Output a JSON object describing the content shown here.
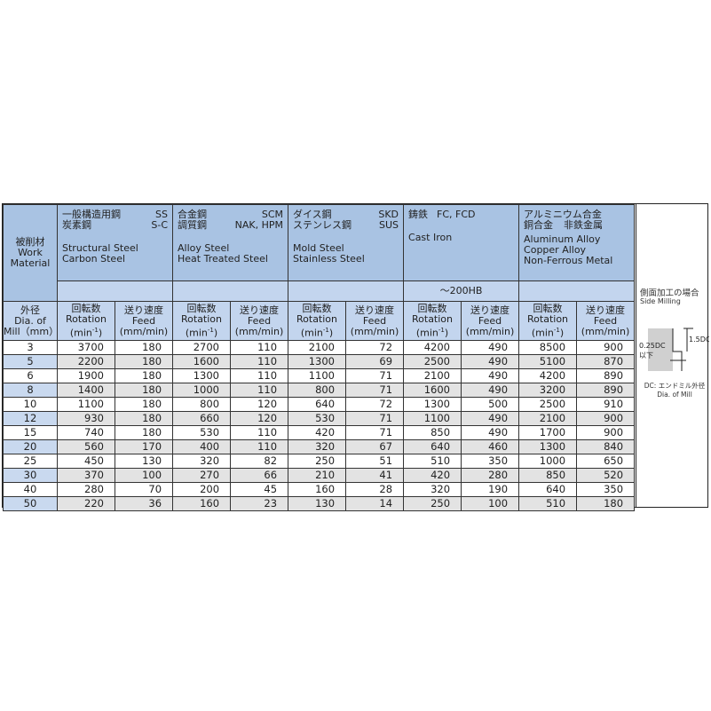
{
  "header": {
    "work_material": [
      "被削材",
      "Work",
      "Material"
    ],
    "groups": [
      {
        "jp1": "一般構造用鋼",
        "code1": "SS",
        "jp2": "炭素鋼",
        "code2": "S-C",
        "en": [
          "Structural Steel",
          "Carbon Steel"
        ],
        "hardness": ""
      },
      {
        "jp1": "合金鋼",
        "code1": "SCM",
        "jp2": "調質鋼",
        "code2": "NAK, HPM",
        "en": [
          "Alloy Steel",
          "Heat Treated Steel"
        ],
        "hardness": ""
      },
      {
        "jp1": "ダイス鋼",
        "code1": "SKD",
        "jp2": "ステンレス鋼",
        "code2": "SUS",
        "en": [
          "Mold Steel",
          "Stainless Steel"
        ],
        "hardness": ""
      },
      {
        "jp1": "鋳鉄",
        "code1": "FC, FCD",
        "jp2": "",
        "code2": "",
        "en": [
          "Cast Iron"
        ],
        "hardness": "～200HB"
      },
      {
        "jp1": "アルミニウム合金",
        "code1": "",
        "jp2": "銅合金",
        "code2": "非鉄金属",
        "en": [
          "Aluminum Alloy",
          "Copper Alloy",
          "Non-Ferrous Metal"
        ],
        "hardness": ""
      }
    ],
    "dia": [
      "外径",
      "Dia. of",
      "Mill（mm）"
    ],
    "rotation": [
      "回転数",
      "Rotation",
      "(min",
      "-1",
      ")"
    ],
    "feed": [
      "送り速度",
      "Feed",
      "(mm/min)"
    ]
  },
  "rows": [
    [
      "3",
      "3700",
      "180",
      "2700",
      "110",
      "2100",
      "72",
      "4200",
      "490",
      "8500",
      "900"
    ],
    [
      "5",
      "2200",
      "180",
      "1600",
      "110",
      "1300",
      "69",
      "2500",
      "490",
      "5100",
      "870"
    ],
    [
      "6",
      "1900",
      "180",
      "1300",
      "110",
      "1100",
      "71",
      "2100",
      "490",
      "4200",
      "890"
    ],
    [
      "8",
      "1400",
      "180",
      "1000",
      "110",
      "800",
      "71",
      "1600",
      "490",
      "3200",
      "890"
    ],
    [
      "10",
      "1100",
      "180",
      "800",
      "120",
      "640",
      "72",
      "1300",
      "500",
      "2500",
      "910"
    ],
    [
      "12",
      "930",
      "180",
      "660",
      "120",
      "530",
      "71",
      "1100",
      "490",
      "2100",
      "900"
    ],
    [
      "15",
      "740",
      "180",
      "530",
      "110",
      "420",
      "71",
      "850",
      "490",
      "1700",
      "900"
    ],
    [
      "20",
      "560",
      "170",
      "400",
      "110",
      "320",
      "67",
      "640",
      "460",
      "1300",
      "840"
    ],
    [
      "25",
      "450",
      "130",
      "320",
      "82",
      "250",
      "51",
      "510",
      "350",
      "1000",
      "650"
    ],
    [
      "30",
      "370",
      "100",
      "270",
      "66",
      "210",
      "41",
      "420",
      "280",
      "850",
      "520"
    ],
    [
      "40",
      "280",
      "70",
      "200",
      "45",
      "160",
      "28",
      "320",
      "190",
      "640",
      "350"
    ],
    [
      "50",
      "220",
      "36",
      "160",
      "23",
      "130",
      "14",
      "250",
      "100",
      "510",
      "180"
    ]
  ],
  "side": {
    "title": "側面加工の場合",
    "title_en": "Side Milling",
    "depth": "1.5DC",
    "width": "0.25DC",
    "width2": "以下",
    "note": "DC: エンドミル外径",
    "note_en": "Dia. of Mill"
  },
  "colors": {
    "header": "#a9c3e3",
    "subheader": "#c3d5ee",
    "stripe": "#e3e3e3",
    "stripe_first": "#c9d9ef"
  }
}
